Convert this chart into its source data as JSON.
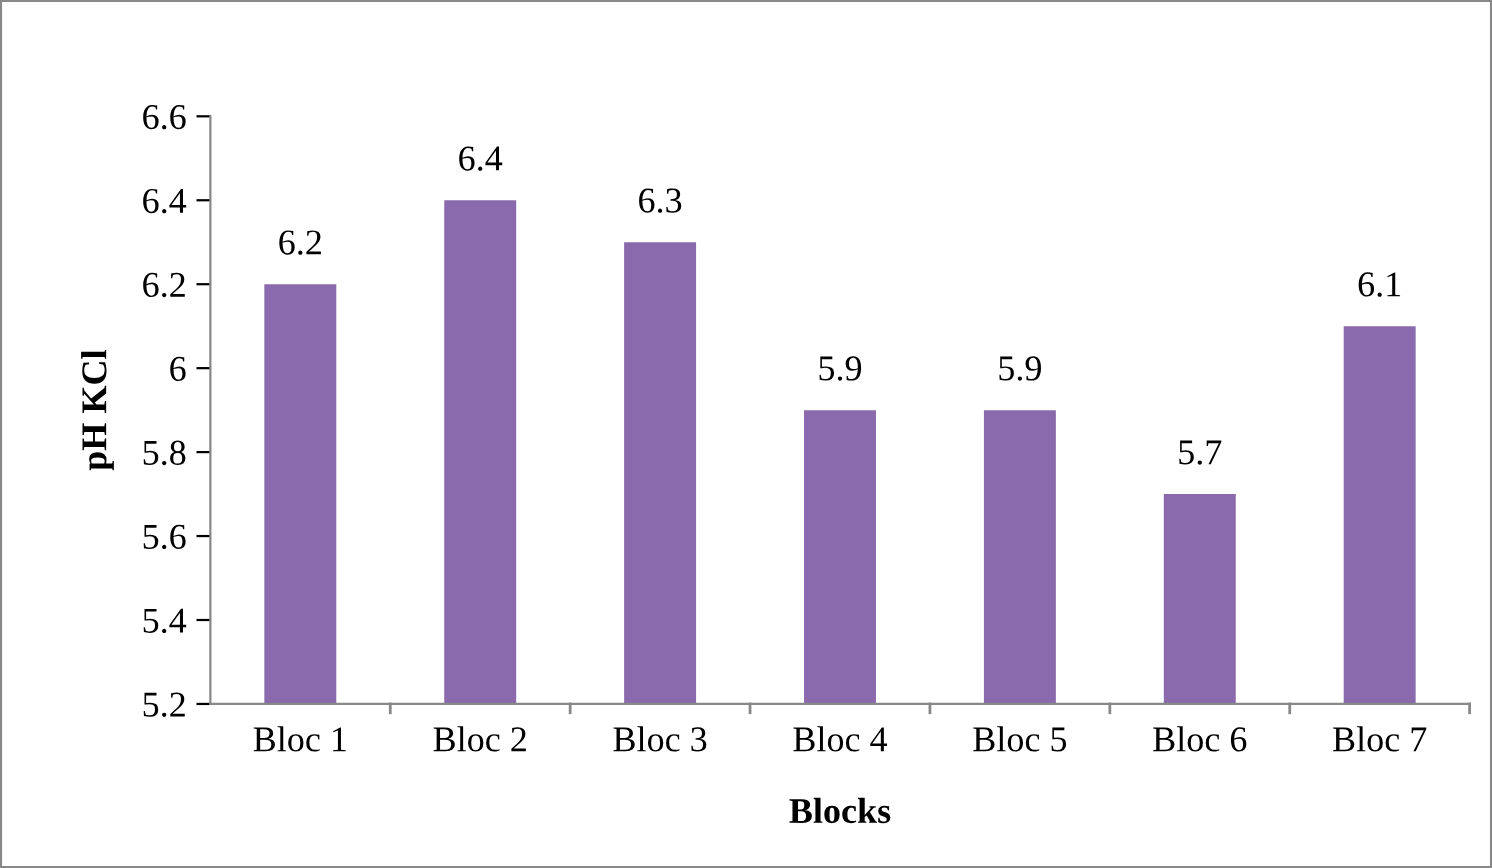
{
  "chart_data": {
    "type": "bar",
    "xlabel": "Blocks",
    "ylabel": "pH KCl",
    "categories": [
      "Bloc 1",
      "Bloc 2",
      "Bloc 3",
      "Bloc 4",
      "Bloc 5",
      "Bloc 6",
      "Bloc 7"
    ],
    "values": [
      6.2,
      6.4,
      6.3,
      5.9,
      5.9,
      5.7,
      6.1
    ],
    "color": "#8a6aad",
    "ylim": [
      5.2,
      6.6
    ],
    "yticks": [
      5.2,
      5.4,
      5.6,
      5.8,
      6,
      6.2,
      6.4,
      6.6
    ],
    "data_labels": true,
    "grid": false,
    "legend": false
  }
}
